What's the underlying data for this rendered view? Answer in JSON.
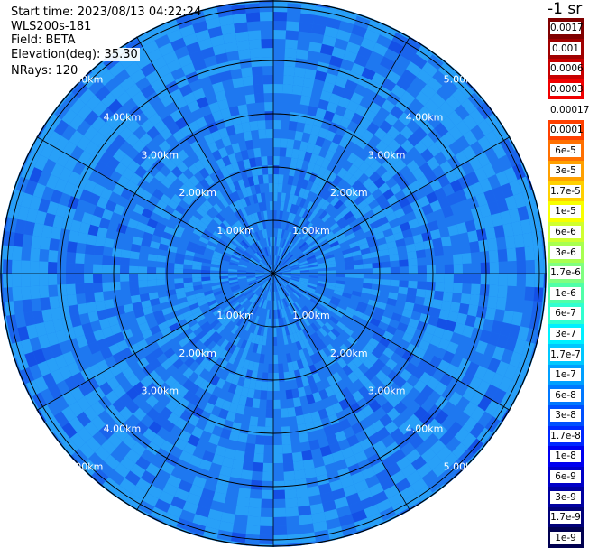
{
  "header": {
    "start_time": "Start time: 2023/08/13 04:22:24",
    "instrument": "WLS200s-181",
    "field": "Field: BETA",
    "elevation": "Elevation(deg): 35.30",
    "nrays": "NRays: 120"
  },
  "units": "-1 sr",
  "ppi": {
    "nrays": 120,
    "range_labels": [
      "1.00km",
      "2.00km",
      "3.00km",
      "4.00km",
      "5.00km"
    ]
  },
  "colorbar": {
    "labels": [
      "0.0017",
      "0.001",
      "0.0006",
      "0.0003",
      "0.00017",
      "0.0001",
      "6e-5",
      "3e-5",
      "1.7e-5",
      "1e-5",
      "6e-6",
      "3e-6",
      "1.7e-6",
      "1e-6",
      "6e-7",
      "3e-7",
      "1.7e-7",
      "1e-7",
      "6e-8",
      "3e-8",
      "1.7e-8",
      "1e-8",
      "6e-9",
      "3e-9",
      "1.7e-9",
      "1e-9"
    ],
    "colors": [
      "#800000",
      "#a00000",
      "#c80000",
      "#f00000",
      "#ffffff",
      "#ff4000",
      "#ff7000",
      "#ffa000",
      "#ffd000",
      "#f8ff00",
      "#d0ff30",
      "#a8ff50",
      "#80ff80",
      "#50ffa8",
      "#30ffd0",
      "#00f0ff",
      "#00c8ff",
      "#00a0ff",
      "#0078ff",
      "#0050ff",
      "#0028ff",
      "#0000f0",
      "#0000c8",
      "#0000a0",
      "#000078",
      "#000050"
    ]
  },
  "colors": {
    "field_base": "#1e78f0",
    "field_light": "#28a0f8",
    "field_dark": "#1450e6",
    "grid": "#000000"
  }
}
